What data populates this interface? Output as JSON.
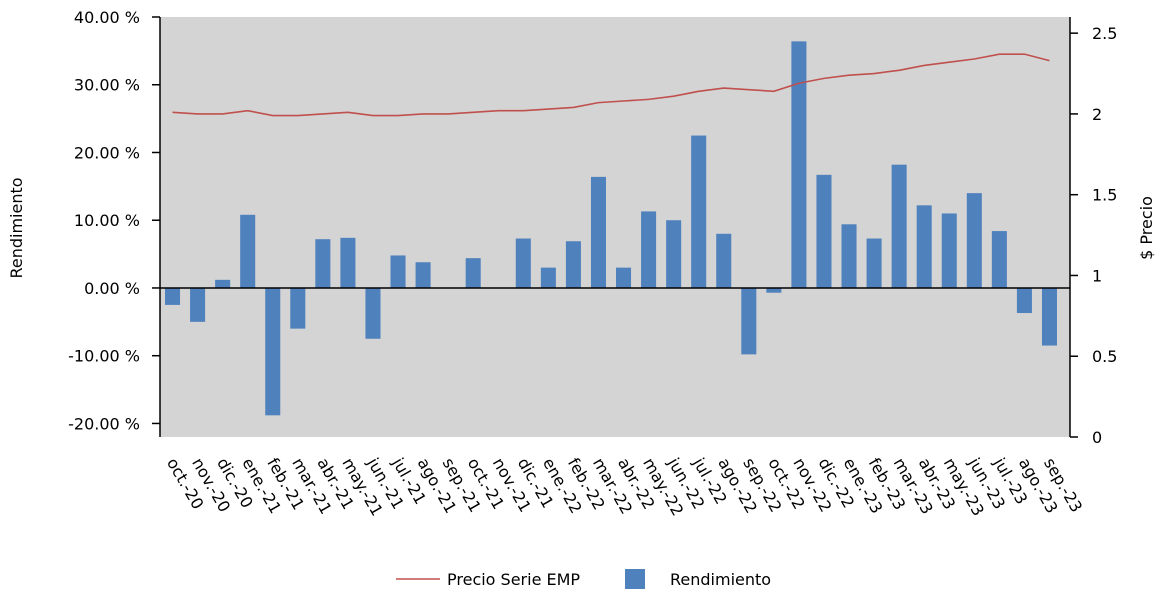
{
  "chart_data": {
    "type": "bar_line",
    "categories": [
      "oct.-20",
      "nov.-20",
      "dic.-20",
      "ene.-21",
      "feb.-21",
      "mar.-21",
      "abr.-21",
      "may.-21",
      "jun.-21",
      "jul.-21",
      "ago.-21",
      "sep.-21",
      "oct.-21",
      "nov.-21",
      "dic.-21",
      "ene.-22",
      "feb.-22",
      "mar.-22",
      "abr.-22",
      "may.-22",
      "jun.-22",
      "jul.-22",
      "ago.-22",
      "sep.-22",
      "oct.-22",
      "nov.-22",
      "dic.-22",
      "ene.-23",
      "feb.-23",
      "mar.-23",
      "abr.-23",
      "may.-23",
      "jun.-23",
      "jul.-23",
      "ago.-23",
      "sep.-23"
    ],
    "series": [
      {
        "name": "Precio Serie EMP",
        "type": "line",
        "axis": "y2",
        "color": "#c0504d",
        "values": [
          2.01,
          2.0,
          2.0,
          2.02,
          1.99,
          1.99,
          2.0,
          2.01,
          1.99,
          1.99,
          2.0,
          2.0,
          2.01,
          2.02,
          2.02,
          2.03,
          2.04,
          2.07,
          2.08,
          2.09,
          2.11,
          2.14,
          2.16,
          2.15,
          2.14,
          2.19,
          2.22,
          2.24,
          2.25,
          2.27,
          2.3,
          2.32,
          2.34,
          2.37,
          2.37,
          2.33
        ]
      },
      {
        "name": "Rendimiento",
        "type": "bar",
        "color": "#4f81bd",
        "values": [
          -2.5,
          -5,
          1.2,
          10.8,
          -18.8,
          -6,
          7.2,
          7.4,
          -7.5,
          4.8,
          3.8,
          0,
          4.4,
          0,
          7.3,
          3.0,
          6.9,
          16.4,
          3.0,
          11.3,
          10.0,
          22.5,
          8.0,
          -9.8,
          -0.7,
          36.4,
          16.7,
          9.4,
          7.3,
          18.2,
          12.2,
          11.0,
          14.0,
          8.4,
          -3.7,
          -8.5
        ]
      }
    ],
    "y_label": "Rendimiento",
    "y2_label": "$ Precio",
    "ylim": [
      -22,
      40
    ],
    "yticks": [
      {
        "value": 40,
        "label": "40.00 %"
      },
      {
        "value": 30,
        "label": "30.00 %"
      },
      {
        "value": 20,
        "label": "20.00 %"
      },
      {
        "value": 10,
        "label": "10.00 %"
      },
      {
        "value": 0,
        "label": "0.00 %"
      },
      {
        "value": -10,
        "label": "-10.00 %"
      },
      {
        "value": -20,
        "label": "-20.00 %"
      }
    ],
    "y2lim": [
      0,
      2.6
    ],
    "y2ticks": [
      2.5,
      2,
      1.5,
      1,
      0.5,
      0
    ],
    "plot_background": "#d4d4d4"
  }
}
